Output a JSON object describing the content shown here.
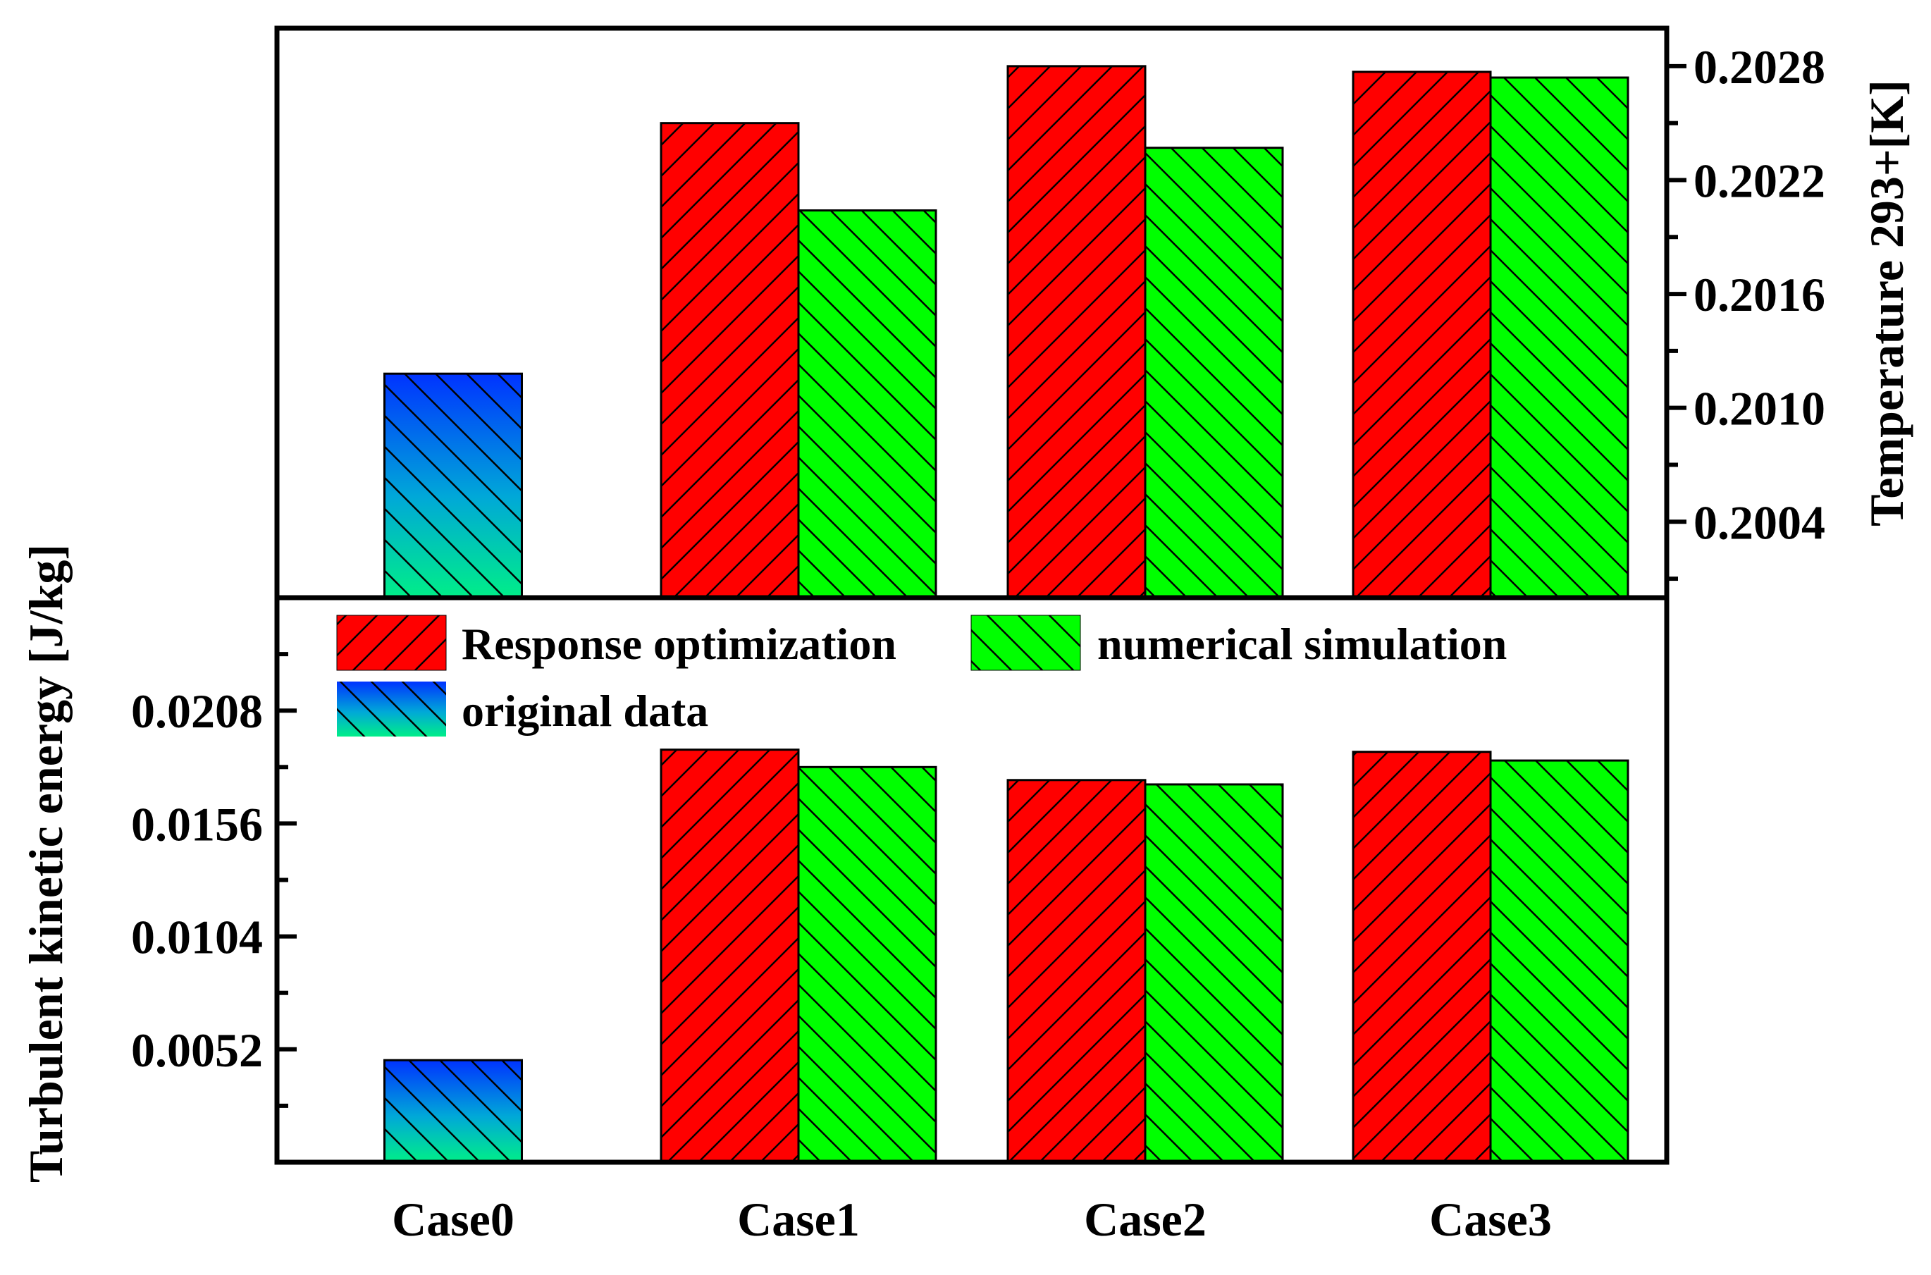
{
  "chart_data": [
    {
      "type": "bar",
      "panel": "top",
      "categories": [
        "Case0",
        "Case1",
        "Case2",
        "Case3"
      ],
      "ylabel": "Temperature 293+[K]",
      "axis_side": "right",
      "ylim": [
        0.2,
        0.203
      ],
      "yticks": [
        "0.2004",
        "0.2010",
        "0.2016",
        "0.2022",
        "0.2028"
      ],
      "series": [
        {
          "name": "original data",
          "values": [
            0.20118,
            null,
            null,
            null
          ]
        },
        {
          "name": "Response optimization",
          "values": [
            null,
            0.2025,
            0.2028,
            0.20277
          ]
        },
        {
          "name": "numerical simulation",
          "values": [
            null,
            0.20204,
            0.20237,
            0.20274
          ]
        }
      ]
    },
    {
      "type": "bar",
      "panel": "bottom",
      "categories": [
        "Case0",
        "Case1",
        "Case2",
        "Case3"
      ],
      "ylabel": "Turbulent kinetic energy [J/kg]",
      "axis_side": "left",
      "ylim": [
        0,
        0.026
      ],
      "yticks": [
        "0.0052",
        "0.0104",
        "0.0156",
        "0.0208"
      ],
      "series": [
        {
          "name": "original data",
          "values": [
            0.0047,
            null,
            null,
            null
          ]
        },
        {
          "name": "Response optimization",
          "values": [
            null,
            0.019,
            0.0176,
            0.0189
          ]
        },
        {
          "name": "numerical simulation",
          "values": [
            null,
            0.0182,
            0.0174,
            0.0185
          ]
        }
      ]
    }
  ],
  "legend": {
    "position": "top-left of bottom panel",
    "items": [
      {
        "label": "Response optimization",
        "style": "red-forward-hatch"
      },
      {
        "label": "numerical simulation",
        "style": "green-back-hatch"
      },
      {
        "label": "original data",
        "style": "blue-green-gradient-back-hatch"
      }
    ]
  },
  "colors": {
    "response": "#ff0000",
    "numerical": "#00ff00",
    "original_top": "#0033ff",
    "original_bottom": "#00ee88",
    "hatch": "#000000"
  }
}
